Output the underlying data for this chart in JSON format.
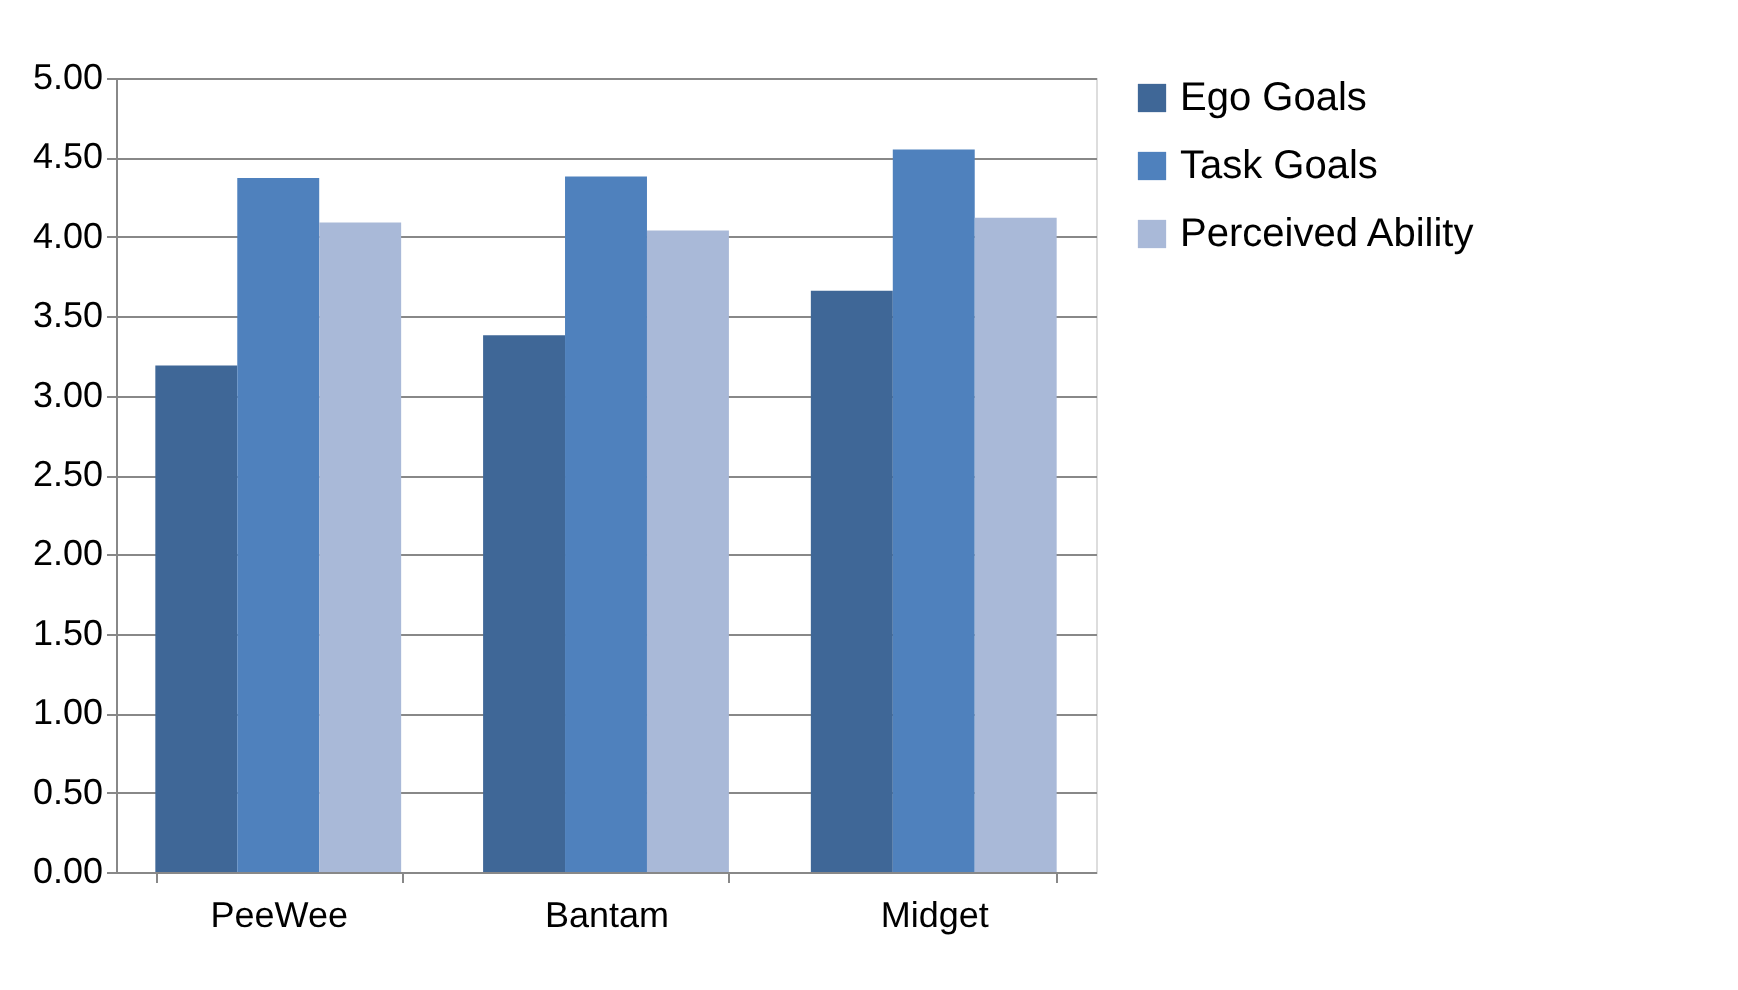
{
  "chart_data": {
    "type": "bar",
    "categories": [
      "PeeWee",
      "Bantam",
      "Midget"
    ],
    "series": [
      {
        "name": "Ego Goals",
        "color": "#3f6797",
        "values": [
          3.19,
          3.38,
          3.66
        ]
      },
      {
        "name": "Task Goals",
        "color": "#4f81bd",
        "values": [
          4.37,
          4.38,
          4.55
        ]
      },
      {
        "name": "Perceived Ability",
        "color": "#a9b9d8",
        "values": [
          4.09,
          4.04,
          4.12
        ]
      }
    ],
    "ylim": [
      0,
      5
    ],
    "yticks": [
      {
        "value": 0,
        "label": "0.00"
      },
      {
        "value": 0.5,
        "label": "0.50"
      },
      {
        "value": 1,
        "label": "1.00"
      },
      {
        "value": 1.5,
        "label": "1.50"
      },
      {
        "value": 2,
        "label": "2.00"
      },
      {
        "value": 2.5,
        "label": "2.50"
      },
      {
        "value": 3,
        "label": "3.00"
      },
      {
        "value": 3.5,
        "label": "3.50"
      },
      {
        "value": 4,
        "label": "4.00"
      },
      {
        "value": 4.5,
        "label": "4.50"
      },
      {
        "value": 5,
        "label": "5.00"
      }
    ],
    "grid": "y",
    "legend": "right"
  }
}
